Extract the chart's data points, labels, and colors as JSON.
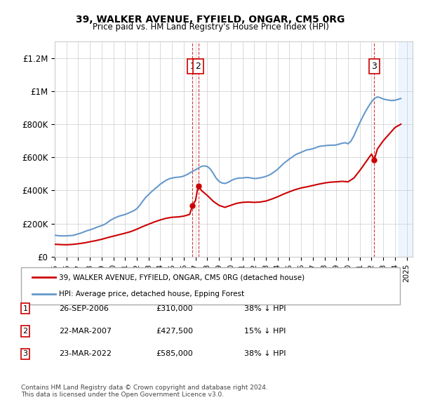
{
  "title": "39, WALKER AVENUE, FYFIELD, ONGAR, CM5 0RG",
  "subtitle": "Price paid vs. HM Land Registry's House Price Index (HPI)",
  "ylabel_ticks": [
    "£0",
    "£200K",
    "£400K",
    "£600K",
    "£800K",
    "£1M",
    "£1.2M"
  ],
  "ytick_vals": [
    0,
    200000,
    400000,
    600000,
    800000,
    1000000,
    1200000
  ],
  "ylim": [
    0,
    1300000
  ],
  "xlim_start": 1995.0,
  "xlim_end": 2025.5,
  "background_color": "#ffffff",
  "plot_bg_color": "#ffffff",
  "grid_color": "#cccccc",
  "hpi_color": "#6699cc",
  "price_color": "#cc0000",
  "transaction_color": "#cc0000",
  "vline_color": "#cc0000",
  "future_bg_color": "#ddeeff",
  "legend_label_price": "39, WALKER AVENUE, FYFIELD, ONGAR, CM5 0RG (detached house)",
  "legend_label_hpi": "HPI: Average price, detached house, Epping Forest",
  "transactions": [
    {
      "id": 1,
      "date": 2006.74,
      "price": 310000,
      "label": "1",
      "pct": "38%"
    },
    {
      "id": 2,
      "date": 2007.23,
      "price": 427500,
      "label": "2",
      "pct": "15%"
    },
    {
      "id": 3,
      "date": 2022.23,
      "price": 585000,
      "label": "3",
      "pct": "38%"
    }
  ],
  "table_rows": [
    {
      "num": "1",
      "date": "26-SEP-2006",
      "price": "£310,000",
      "pct": "38% ↓ HPI"
    },
    {
      "num": "2",
      "date": "22-MAR-2007",
      "price": "£427,500",
      "pct": "15% ↓ HPI"
    },
    {
      "num": "3",
      "date": "23-MAR-2022",
      "price": "£585,000",
      "pct": "38% ↓ HPI"
    }
  ],
  "footer": "Contains HM Land Registry data © Crown copyright and database right 2024.\nThis data is licensed under the Open Government Licence v3.0.",
  "hpi_data_x": [
    1995.0,
    1995.25,
    1995.5,
    1995.75,
    1996.0,
    1996.25,
    1996.5,
    1996.75,
    1997.0,
    1997.25,
    1997.5,
    1997.75,
    1998.0,
    1998.25,
    1998.5,
    1998.75,
    1999.0,
    1999.25,
    1999.5,
    1999.75,
    2000.0,
    2000.25,
    2000.5,
    2000.75,
    2001.0,
    2001.25,
    2001.5,
    2001.75,
    2002.0,
    2002.25,
    2002.5,
    2002.75,
    2003.0,
    2003.25,
    2003.5,
    2003.75,
    2004.0,
    2004.25,
    2004.5,
    2004.75,
    2005.0,
    2005.25,
    2005.5,
    2005.75,
    2006.0,
    2006.25,
    2006.5,
    2006.75,
    2007.0,
    2007.25,
    2007.5,
    2007.75,
    2008.0,
    2008.25,
    2008.5,
    2008.75,
    2009.0,
    2009.25,
    2009.5,
    2009.75,
    2010.0,
    2010.25,
    2010.5,
    2010.75,
    2011.0,
    2011.25,
    2011.5,
    2011.75,
    2012.0,
    2012.25,
    2012.5,
    2012.75,
    2013.0,
    2013.25,
    2013.5,
    2013.75,
    2014.0,
    2014.25,
    2014.5,
    2014.75,
    2015.0,
    2015.25,
    2015.5,
    2015.75,
    2016.0,
    2016.25,
    2016.5,
    2016.75,
    2017.0,
    2017.25,
    2017.5,
    2017.75,
    2018.0,
    2018.25,
    2018.5,
    2018.75,
    2019.0,
    2019.25,
    2019.5,
    2019.75,
    2020.0,
    2020.25,
    2020.5,
    2020.75,
    2021.0,
    2021.25,
    2021.5,
    2021.75,
    2022.0,
    2022.25,
    2022.5,
    2022.75,
    2023.0,
    2023.25,
    2023.5,
    2023.75,
    2024.0,
    2024.25,
    2024.5
  ],
  "hpi_data_y": [
    130000,
    127000,
    126000,
    125000,
    126000,
    127000,
    128000,
    132000,
    138000,
    143000,
    150000,
    157000,
    162000,
    168000,
    175000,
    182000,
    188000,
    195000,
    207000,
    220000,
    230000,
    238000,
    245000,
    250000,
    255000,
    262000,
    270000,
    278000,
    290000,
    310000,
    335000,
    358000,
    375000,
    392000,
    408000,
    422000,
    438000,
    450000,
    462000,
    470000,
    475000,
    478000,
    480000,
    482000,
    487000,
    495000,
    505000,
    515000,
    525000,
    535000,
    545000,
    548000,
    545000,
    530000,
    505000,
    475000,
    455000,
    445000,
    442000,
    448000,
    458000,
    467000,
    472000,
    475000,
    475000,
    478000,
    478000,
    475000,
    472000,
    473000,
    476000,
    480000,
    485000,
    492000,
    502000,
    514000,
    528000,
    545000,
    562000,
    576000,
    590000,
    602000,
    615000,
    623000,
    630000,
    638000,
    645000,
    648000,
    652000,
    658000,
    665000,
    668000,
    670000,
    672000,
    673000,
    673000,
    675000,
    680000,
    685000,
    688000,
    682000,
    698000,
    730000,
    770000,
    808000,
    845000,
    878000,
    908000,
    935000,
    955000,
    965000,
    960000,
    952000,
    948000,
    945000,
    943000,
    945000,
    950000,
    955000
  ],
  "price_data_x": [
    1995.0,
    1995.5,
    1996.0,
    1996.5,
    1997.0,
    1997.5,
    1998.0,
    1998.5,
    1999.0,
    1999.5,
    2000.0,
    2000.5,
    2001.0,
    2001.5,
    2002.0,
    2002.5,
    2003.0,
    2003.5,
    2004.0,
    2004.5,
    2005.0,
    2005.5,
    2006.0,
    2006.5,
    2006.74,
    2007.0,
    2007.23,
    2007.5,
    2008.0,
    2008.5,
    2009.0,
    2009.5,
    2010.0,
    2010.5,
    2011.0,
    2011.5,
    2012.0,
    2012.5,
    2013.0,
    2013.5,
    2014.0,
    2014.5,
    2015.0,
    2015.5,
    2016.0,
    2016.5,
    2017.0,
    2017.5,
    2018.0,
    2018.5,
    2019.0,
    2019.5,
    2020.0,
    2020.5,
    2021.0,
    2021.5,
    2022.0,
    2022.23,
    2022.5,
    2023.0,
    2023.5,
    2024.0,
    2024.5
  ],
  "price_data_y": [
    75000,
    73000,
    72000,
    74000,
    78000,
    83000,
    90000,
    97000,
    105000,
    115000,
    124000,
    133000,
    142000,
    152000,
    166000,
    182000,
    196000,
    210000,
    222000,
    232000,
    238000,
    240000,
    245000,
    255000,
    310000,
    340000,
    427500,
    400000,
    370000,
    335000,
    310000,
    298000,
    310000,
    322000,
    328000,
    330000,
    328000,
    330000,
    336000,
    348000,
    362000,
    378000,
    392000,
    405000,
    415000,
    422000,
    430000,
    438000,
    445000,
    450000,
    452000,
    455000,
    452000,
    475000,
    520000,
    570000,
    620000,
    585000,
    650000,
    700000,
    740000,
    780000,
    800000
  ]
}
